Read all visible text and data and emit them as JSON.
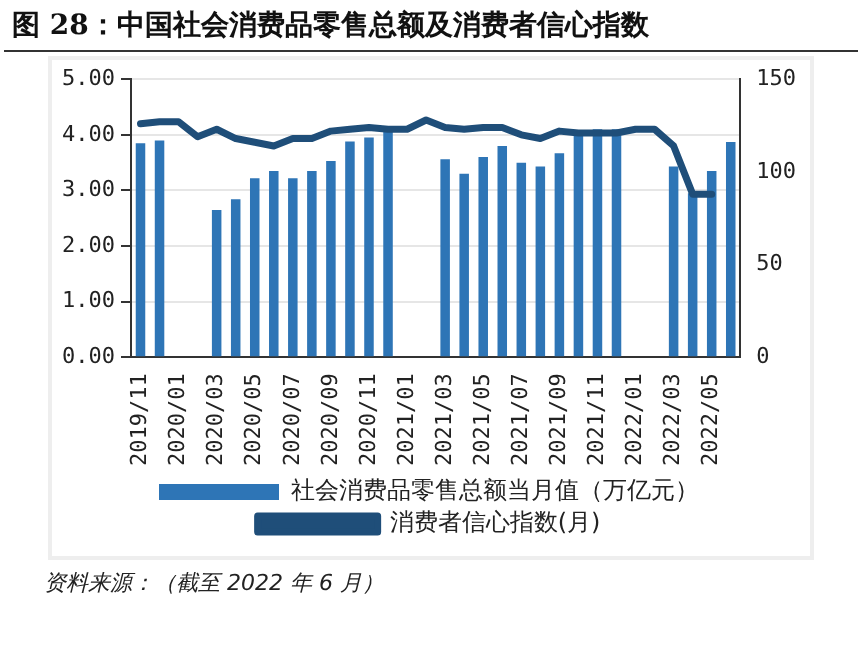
{
  "chart_data": {
    "type": "bar",
    "title": "图 28：中国社会消费品零售总额及消费者信心指数",
    "categories": [
      "2019/11",
      null,
      "2020/01",
      null,
      "2020/03",
      null,
      "2020/05",
      null,
      "2020/07",
      null,
      "2020/09",
      null,
      "2020/11",
      null,
      "2021/01",
      null,
      "2021/03",
      null,
      "2021/05",
      null,
      "2021/07",
      null,
      "2021/09",
      null,
      "2021/11",
      null,
      "2022/01",
      null,
      "2022/03",
      null,
      "2022/05",
      null
    ],
    "series": [
      {
        "name": "社会消费品零售总额当月值（万亿元）",
        "color": "#2e75b6",
        "values": [
          3.85,
          3.9,
          null,
          null,
          2.65,
          2.84,
          3.22,
          3.35,
          3.22,
          3.35,
          3.53,
          3.88,
          3.95,
          4.05,
          null,
          null,
          3.56,
          3.3,
          3.6,
          3.8,
          3.5,
          3.43,
          3.67,
          4.0,
          4.1,
          4.1,
          null,
          null,
          3.43,
          2.95,
          3.35,
          3.87
        ]
      },
      {
        "name": "消费者信心指数(月)",
        "type": "line",
        "axis": "y2",
        "color": "#1f4e79",
        "values": [
          126,
          127,
          127,
          119,
          123,
          118,
          116,
          114,
          118,
          118,
          122,
          123,
          124,
          123,
          123,
          128,
          124,
          123,
          124,
          124,
          120,
          118,
          122,
          121,
          121,
          121,
          123,
          123,
          114,
          88,
          88,
          null
        ]
      }
    ],
    "ylim": [
      0,
      5
    ],
    "yticks": [
      {
        "value": 0,
        "label": "0.00"
      },
      {
        "value": 1,
        "label": "1.00"
      },
      {
        "value": 2,
        "label": "2.00"
      },
      {
        "value": 3,
        "label": "3.00"
      },
      {
        "value": 4,
        "label": "4.00"
      },
      {
        "value": 5,
        "label": "5.00"
      }
    ],
    "y2lim": [
      0,
      150
    ],
    "y2ticks": [
      0,
      50,
      100,
      150
    ],
    "grid": "y",
    "legend": "bottom",
    "marker": "none",
    "line_style": "solid",
    "annotations": [
      "资料来源：（截至 2022 年 6 月）"
    ]
  }
}
